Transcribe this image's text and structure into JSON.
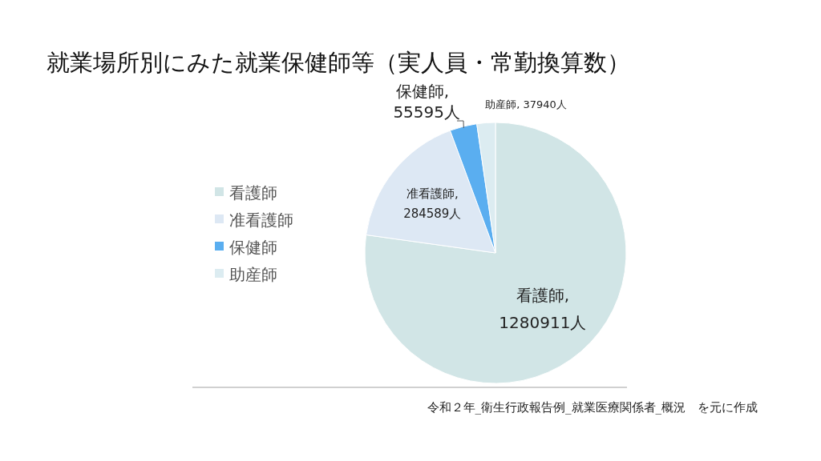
{
  "chart_data": {
    "type": "pie",
    "title": "就業場所別にみた就業保健師等（実人員・常勤換算数）",
    "categories": [
      "看護師",
      "准看護師",
      "保健師",
      "助産師"
    ],
    "values": [
      1280911,
      284589,
      55595,
      37940
    ],
    "value_labels": [
      "看護師,\n1280911人",
      "准看護師,\n284589人",
      "保健師,\n55595人",
      "助産師, 37940人"
    ],
    "colors": [
      "#d1e5e6",
      "#dde8f4",
      "#5aaef0",
      "#dcecf1"
    ],
    "legend": "left",
    "annotations": [
      "令和２年_衛生行政報告例_就業医療関係者_概況　を元に作成"
    ]
  }
}
